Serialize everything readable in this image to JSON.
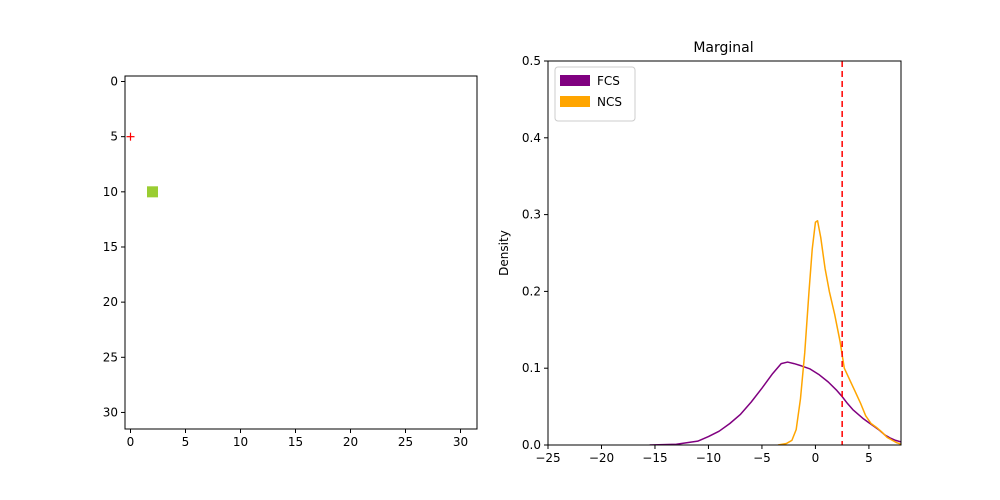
{
  "chart_data": [
    {
      "type": "heatmap",
      "title": "",
      "xlabel": "",
      "ylabel": "",
      "xlim": [
        -0.5,
        31.5
      ],
      "ylim": [
        31.5,
        -0.5
      ],
      "x_ticks": [
        0,
        5,
        10,
        15,
        20,
        25,
        30
      ],
      "y_ticks": [
        0,
        5,
        10,
        15,
        20,
        25,
        30
      ],
      "cells": [
        {
          "x": 2,
          "y": 10,
          "color": "#9acd32"
        }
      ],
      "markers": [
        {
          "x": 0,
          "y": 5,
          "symbol": "+",
          "color": "#ff0000"
        }
      ],
      "grid": false
    },
    {
      "type": "line",
      "title": "Marginal",
      "xlabel": "",
      "ylabel": "Density",
      "xlim": [
        -25,
        8
      ],
      "ylim": [
        0,
        0.5
      ],
      "x_ticks": [
        -25,
        -20,
        -15,
        -10,
        -5,
        0,
        5
      ],
      "y_ticks": [
        0.0,
        0.1,
        0.2,
        0.3,
        0.4,
        0.5
      ],
      "legend_position": "top-left",
      "grid": false,
      "vline": {
        "x": 2.5,
        "color": "#ff0000",
        "style": "dashed"
      },
      "series": [
        {
          "name": "FCS",
          "color": "#800080",
          "points": [
            [
              -15.5,
              0.0
            ],
            [
              -13,
              0.001
            ],
            [
              -11,
              0.005
            ],
            [
              -10,
              0.011
            ],
            [
              -9,
              0.018
            ],
            [
              -8,
              0.028
            ],
            [
              -7,
              0.04
            ],
            [
              -6,
              0.056
            ],
            [
              -5,
              0.074
            ],
            [
              -4,
              0.093
            ],
            [
              -3.2,
              0.106
            ],
            [
              -2.6,
              0.108
            ],
            [
              -2,
              0.106
            ],
            [
              -1.3,
              0.103
            ],
            [
              -0.5,
              0.099
            ],
            [
              0.3,
              0.092
            ],
            [
              1.2,
              0.082
            ],
            [
              2,
              0.071
            ],
            [
              2.5,
              0.063
            ],
            [
              3,
              0.054
            ],
            [
              3.5,
              0.046
            ],
            [
              4,
              0.04
            ],
            [
              4.5,
              0.034
            ],
            [
              5,
              0.029
            ],
            [
              5.5,
              0.024
            ],
            [
              6,
              0.019
            ],
            [
              6.5,
              0.013
            ],
            [
              7,
              0.009
            ],
            [
              7.5,
              0.006
            ],
            [
              8,
              0.004
            ]
          ]
        },
        {
          "name": "NCS",
          "color": "#ffa500",
          "points": [
            [
              -3.5,
              0.0
            ],
            [
              -2.7,
              0.002
            ],
            [
              -2.2,
              0.006
            ],
            [
              -1.8,
              0.02
            ],
            [
              -1.4,
              0.06
            ],
            [
              -1.0,
              0.12
            ],
            [
              -0.6,
              0.2
            ],
            [
              -0.3,
              0.255
            ],
            [
              0,
              0.29
            ],
            [
              0.2,
              0.292
            ],
            [
              0.5,
              0.27
            ],
            [
              0.9,
              0.23
            ],
            [
              1.3,
              0.2
            ],
            [
              1.8,
              0.17
            ],
            [
              2.3,
              0.135
            ],
            [
              2.7,
              0.1
            ],
            [
              3.2,
              0.085
            ],
            [
              3.7,
              0.07
            ],
            [
              4.2,
              0.055
            ],
            [
              4.7,
              0.038
            ],
            [
              5.2,
              0.028
            ],
            [
              5.7,
              0.023
            ],
            [
              6.2,
              0.017
            ],
            [
              6.7,
              0.01
            ],
            [
              7.2,
              0.006
            ],
            [
              7.6,
              0.003
            ],
            [
              8,
              0.001
            ]
          ]
        }
      ]
    }
  ]
}
